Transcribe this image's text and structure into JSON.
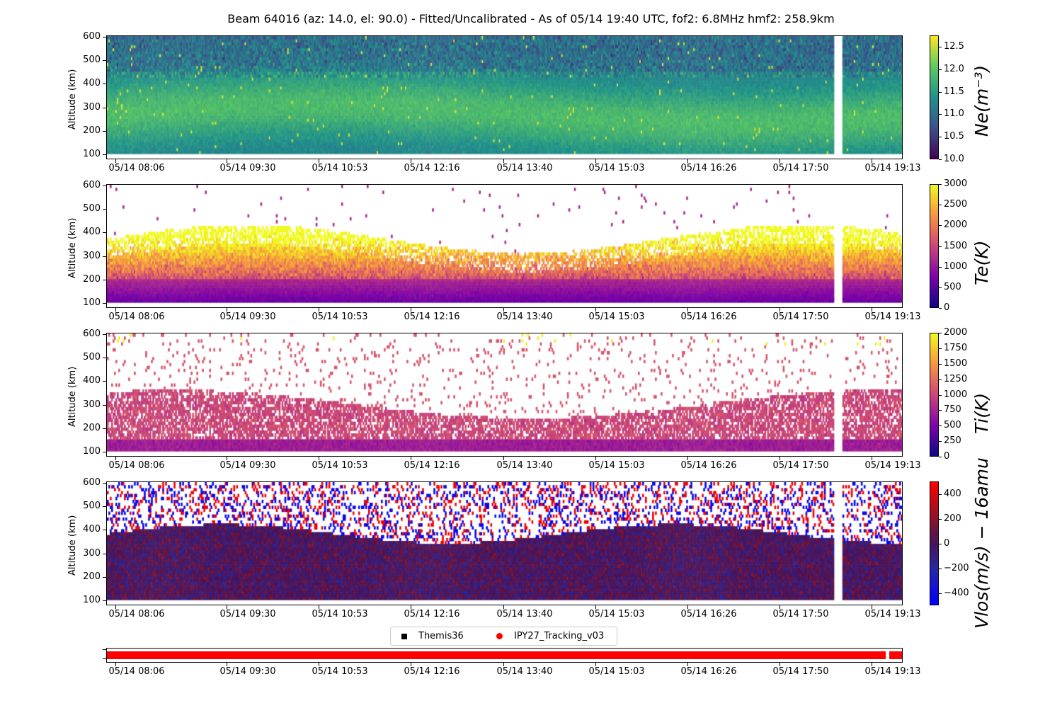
{
  "title": "Beam 64016 (az: 14.0, el: 90.0) - Fitted/Uncalibrated - As of 05/14 19:40 UTC, fof2: 6.8MHz  hmf2: 258.9km",
  "x_tick_labels": [
    "05/14 08:06",
    "05/14 09:30",
    "05/14 10:53",
    "05/14 12:16",
    "05/14 13:40",
    "05/14 15:03",
    "05/14 16:26",
    "05/14 17:50",
    "05/14 19:13"
  ],
  "y_axis_label": "Altitude (km)",
  "y_tick_labels": [
    "100",
    "200",
    "300",
    "400",
    "500",
    "600"
  ],
  "legend": {
    "items": [
      {
        "label": "Themis36",
        "marker": "square",
        "color": "#000000"
      },
      {
        "label": "IPY27_Tracking_v03",
        "marker": "circle",
        "color": "#ff0000"
      }
    ]
  },
  "chart_data": [
    {
      "type": "heatmap",
      "name": "ne",
      "colorbar_label": "Ne(m⁻³)",
      "colormap": "viridis",
      "clim": [
        10.0,
        12.75
      ],
      "colorbar_ticks": [
        "10.0",
        "10.5",
        "11.0",
        "11.5",
        "12.0",
        "12.5"
      ],
      "colorbar_tick_values": [
        10.0,
        10.5,
        11.0,
        11.5,
        12.0,
        12.5
      ],
      "ylim": [
        100,
        600
      ],
      "xlabel": "",
      "ylabel": "Altitude (km)"
    },
    {
      "type": "heatmap",
      "name": "te",
      "colorbar_label": "Te(K)",
      "colormap": "plasma",
      "clim": [
        0,
        3000
      ],
      "colorbar_ticks": [
        "0",
        "500",
        "1000",
        "1500",
        "2000",
        "2500",
        "3000"
      ],
      "colorbar_tick_values": [
        0,
        500,
        1000,
        1500,
        2000,
        2500,
        3000
      ],
      "ylim": [
        100,
        600
      ],
      "xlabel": "",
      "ylabel": "Altitude (km)"
    },
    {
      "type": "heatmap",
      "name": "ti",
      "colorbar_label": "Ti(K)",
      "colormap": "plasma",
      "clim": [
        0,
        2000
      ],
      "colorbar_ticks": [
        "0",
        "250",
        "500",
        "750",
        "1000",
        "1250",
        "1500",
        "1750",
        "2000"
      ],
      "colorbar_tick_values": [
        0,
        250,
        500,
        750,
        1000,
        1250,
        1500,
        1750,
        2000
      ],
      "ylim": [
        100,
        600
      ],
      "xlabel": "",
      "ylabel": "Altitude (km)"
    },
    {
      "type": "heatmap",
      "name": "vlos",
      "colorbar_label": "Vlos(m/s) − 16amu",
      "colormap": "blue-red",
      "clim": [
        -500,
        500
      ],
      "colorbar_ticks": [
        "−400",
        "−200",
        "0",
        "200",
        "400"
      ],
      "colorbar_tick_values": [
        -400,
        -200,
        0,
        200,
        400
      ],
      "ylim": [
        100,
        600
      ],
      "xlabel": "",
      "ylabel": "Altitude (km)"
    },
    {
      "type": "scatter",
      "name": "modes",
      "series": [
        {
          "name": "IPY27_Tracking_v03",
          "color": "#ff0000"
        }
      ],
      "xlim": [
        "05/14 08:06",
        "05/14 19:40"
      ]
    }
  ]
}
